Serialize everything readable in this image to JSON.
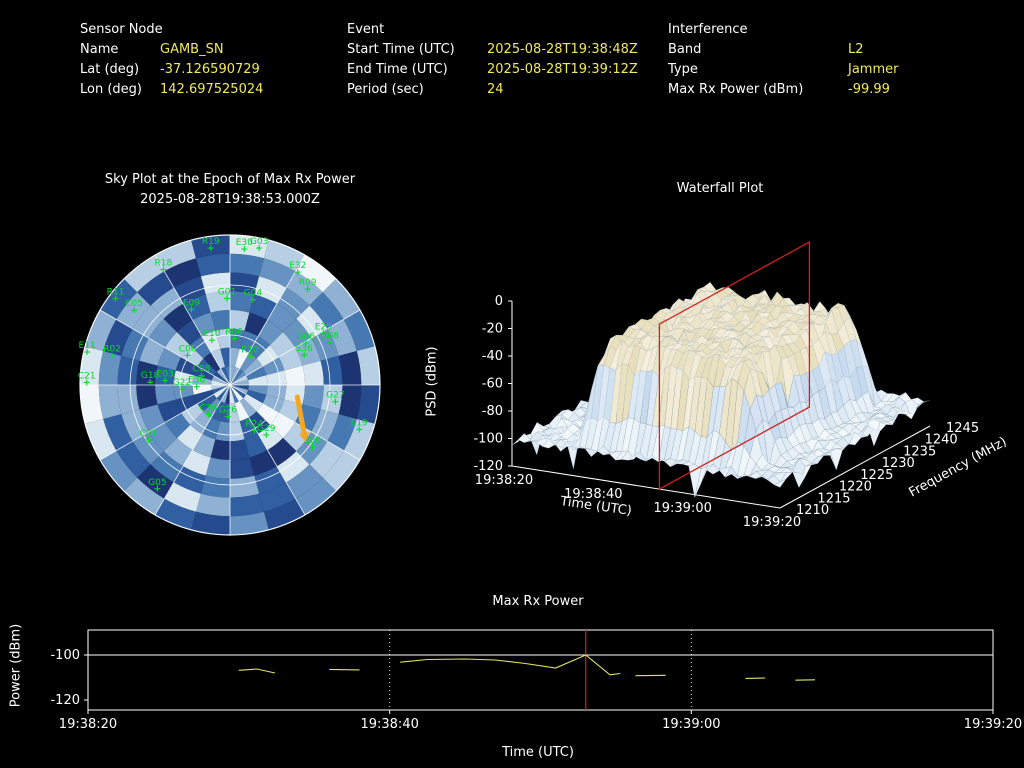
{
  "colors": {
    "background": "#000000",
    "label_text": "#ffffff",
    "value_text": "#f0e95a",
    "satellite_green": "#00dd22",
    "series_yellow": "#e2e26a",
    "epoch_red": "#cc2222",
    "arrow_orange": "#f5a623",
    "axis_white": "#ffffff"
  },
  "header": {
    "sensor_node": {
      "title": "Sensor Node",
      "rows": [
        {
          "label": "Name",
          "value": "GAMB_SN"
        },
        {
          "label": "Lat (deg)",
          "value": "-37.126590729"
        },
        {
          "label": "Lon (deg)",
          "value": "142.697525024"
        }
      ]
    },
    "event": {
      "title": "Event",
      "rows": [
        {
          "label": "Start Time (UTC)",
          "value": "2025-08-28T19:38:48Z"
        },
        {
          "label": "End Time (UTC)",
          "value": "2025-08-28T19:39:12Z"
        },
        {
          "label": "Period (sec)",
          "value": "24"
        }
      ]
    },
    "interference": {
      "title": "Interference",
      "rows": [
        {
          "label": "Band",
          "value": "L2"
        },
        {
          "label": "Type",
          "value": "Jammer"
        },
        {
          "label": "Max Rx Power (dBm)",
          "value": "-99.99"
        }
      ]
    }
  },
  "chart_data": [
    {
      "type": "heatmap",
      "name": "sky_plot",
      "title": "Sky Plot at the Epoch of Max Rx Power",
      "subtitle": "2025-08-28T19:38:53.000Z",
      "projection": "polar",
      "azimuth_sectors": 24,
      "elevation_rings": 8,
      "elevation_grid_deg": [
        30,
        60
      ],
      "palette": [
        "#16245c",
        "#1d3472",
        "#254a8e",
        "#3160a2",
        "#4678b2",
        "#6793c2",
        "#8fb2d4",
        "#b7cfe4",
        "#d9e7f1",
        "#f0f6fa"
      ],
      "noise_seed": 42,
      "satellites": [
        {
          "id": "E30",
          "az": 6,
          "el": 8
        },
        {
          "id": "G03",
          "az": 12,
          "el": 6
        },
        {
          "id": "R19",
          "az": 352,
          "el": 7
        },
        {
          "id": "R18",
          "az": 330,
          "el": 10
        },
        {
          "id": "E32",
          "az": 31,
          "el": 11
        },
        {
          "id": "R09",
          "az": 39,
          "el": 16
        },
        {
          "id": "R11",
          "az": 307,
          "el": 4
        },
        {
          "id": "C05",
          "az": 308,
          "el": 17
        },
        {
          "id": "E09",
          "az": 333,
          "el": 39
        },
        {
          "id": "G01",
          "az": 358,
          "el": 38
        },
        {
          "id": "G04",
          "az": 15,
          "el": 37
        },
        {
          "id": "E25",
          "az": 61,
          "el": 26
        },
        {
          "id": "G06",
          "az": 61,
          "el": 38
        },
        {
          "id": "G08",
          "az": 67,
          "el": 25
        },
        {
          "id": "E10",
          "az": 338,
          "el": 61
        },
        {
          "id": "R06",
          "az": 5,
          "el": 62
        },
        {
          "id": "E11",
          "az": 283,
          "el": 2
        },
        {
          "id": "R02",
          "az": 284,
          "el": 17
        },
        {
          "id": "C06",
          "az": 305,
          "el": 59
        },
        {
          "id": "R10",
          "az": 35,
          "el": 69
        },
        {
          "id": "S36",
          "az": 68,
          "el": 42
        },
        {
          "id": "C21",
          "az": 271,
          "el": 4
        },
        {
          "id": "E03",
          "az": 274,
          "el": 51
        },
        {
          "id": "G18",
          "az": 272,
          "el": 42
        },
        {
          "id": "C08",
          "az": 288,
          "el": 72
        },
        {
          "id": "G22",
          "az": 265,
          "el": 61
        },
        {
          "id": "E36",
          "az": 267,
          "el": 70
        },
        {
          "id": "G27",
          "az": 99,
          "el": 26
        },
        {
          "id": "E19",
          "az": 109,
          "el": 8
        },
        {
          "id": "C36",
          "az": 216,
          "el": 68
        },
        {
          "id": "G26",
          "az": 184,
          "el": 71
        },
        {
          "id": "R24",
          "az": 152,
          "el": 59
        },
        {
          "id": "G29",
          "az": 144,
          "el": 53
        },
        {
          "id": "C01",
          "az": 236,
          "el": 31
        },
        {
          "id": "G05",
          "az": 215,
          "el": 14
        },
        {
          "id": "E08",
          "az": 127,
          "el": 28
        }
      ],
      "max_power_arrow": {
        "az_from": 100,
        "el_from": 49,
        "az_to": 123,
        "el_to": 37,
        "color": "#f5a623"
      }
    },
    {
      "type": "heatmap",
      "name": "waterfall_plot",
      "title": "Waterfall Plot",
      "xlabel": "Time (UTC)",
      "ylabel": "Frequency (MHz)",
      "zlabel": "PSD (dBm)",
      "time_ticks": [
        "19:38:20",
        "19:38:40",
        "19:39:00",
        "19:39:20"
      ],
      "time_tick_seconds": [
        0,
        20,
        40,
        60
      ],
      "freq_ticks": [
        1210,
        1215,
        1220,
        1225,
        1230,
        1235,
        1240,
        1245
      ],
      "psd_ticks": [
        0,
        -20,
        -40,
        -60,
        -80,
        -100,
        -120
      ],
      "freq_range_mhz": [
        1210,
        1245
      ],
      "time_range_utc": [
        "19:38:20",
        "19:39:20"
      ],
      "psd_range_dbm": [
        -120,
        0
      ],
      "noise_floor_dbm": -104,
      "plateau_dbm": -33,
      "event_time_window_s": [
        12,
        50
      ],
      "event_freq_window_mhz": [
        1213,
        1242
      ],
      "epoch_marker": {
        "time_utc": "19:38:53",
        "time_s": 33,
        "color": "#cc2222"
      },
      "noise_seed": 7
    },
    {
      "type": "line",
      "name": "max_rx_power",
      "title": "Max Rx Power",
      "xlabel": "Time (UTC)",
      "ylabel": "Power (dBm)",
      "x_ticks": [
        "19:38:20",
        "19:38:40",
        "19:39:00",
        "19:39:20"
      ],
      "x_tick_seconds": [
        0,
        20,
        40,
        60
      ],
      "y_ticks": [
        -100,
        -120
      ],
      "ylim": [
        -124.4,
        -88.9
      ],
      "x_range_s": [
        0,
        60
      ],
      "grid_x_seconds": [
        20,
        40
      ],
      "grid_y_dbm": [
        -100
      ],
      "epoch_line": {
        "time_s": 33,
        "time_utc": "19:38:53",
        "color": "#cc2222"
      },
      "series": [
        {
          "name": "max_rx_power_dbm",
          "color": "#e2e26a",
          "segments": [
            [
              [
                10,
                -106.8
              ],
              [
                11.2,
                -106.2
              ],
              [
                12.4,
                -108.0
              ]
            ],
            [
              [
                16.0,
                -106.4
              ],
              [
                18.0,
                -106.6
              ]
            ],
            [
              [
                20.7,
                -103.2
              ],
              [
                22.5,
                -102.0
              ],
              [
                25.0,
                -101.8
              ],
              [
                27.0,
                -102.2
              ],
              [
                29.0,
                -103.8
              ],
              [
                31.0,
                -105.8
              ],
              [
                33.0,
                -99.99
              ],
              [
                34.6,
                -108.8
              ],
              [
                35.3,
                -108.2
              ]
            ],
            [
              [
                36.3,
                -109.2
              ],
              [
                38.3,
                -109.0
              ]
            ],
            [
              [
                43.6,
                -110.4
              ],
              [
                44.9,
                -110.2
              ]
            ],
            [
              [
                46.9,
                -111.2
              ],
              [
                48.2,
                -111.0
              ]
            ]
          ]
        }
      ]
    }
  ]
}
